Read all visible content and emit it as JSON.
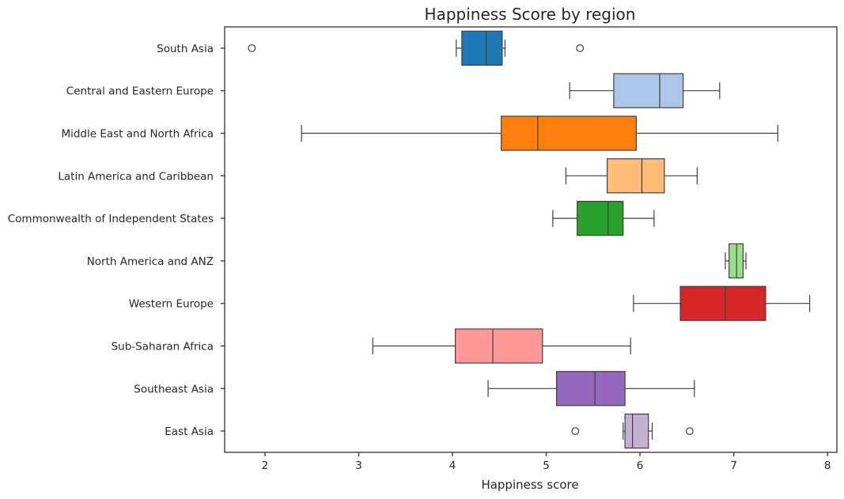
{
  "chart_data": {
    "type": "box",
    "orientation": "horizontal",
    "title": "Happiness Score by region",
    "xlabel": "Happiness score",
    "ylabel": "",
    "xlim": [
      1.57,
      8.1
    ],
    "xticks": [
      2,
      3,
      4,
      5,
      6,
      7,
      8
    ],
    "grid": false,
    "categories": [
      "South Asia",
      "Central and Eastern Europe",
      "Middle East and North Africa",
      "Latin America and Caribbean",
      "Commonwealth of Independent States",
      "North America and ANZ",
      "Western Europe",
      "Sub-Saharan Africa",
      "Southeast Asia",
      "East Asia"
    ],
    "boxes": [
      {
        "color": "#1f77b4",
        "whisker_low": 4.04,
        "q1": 4.1,
        "median": 4.36,
        "q3": 4.53,
        "whisker_high": 4.56,
        "outliers": [
          1.86,
          5.36
        ]
      },
      {
        "color": "#aec7e8",
        "whisker_low": 5.25,
        "q1": 5.72,
        "median": 6.21,
        "q3": 6.46,
        "whisker_high": 6.85,
        "outliers": []
      },
      {
        "color": "#ff7f0e",
        "whisker_low": 2.39,
        "q1": 4.52,
        "median": 4.91,
        "q3": 5.96,
        "whisker_high": 7.47,
        "outliers": []
      },
      {
        "color": "#ffbb78",
        "whisker_low": 5.21,
        "q1": 5.65,
        "median": 6.02,
        "q3": 6.26,
        "whisker_high": 6.61,
        "outliers": []
      },
      {
        "color": "#2ca02c",
        "whisker_low": 5.07,
        "q1": 5.33,
        "median": 5.66,
        "q3": 5.82,
        "whisker_high": 6.15,
        "outliers": []
      },
      {
        "color": "#98df8a",
        "whisker_low": 6.91,
        "q1": 6.95,
        "median": 7.03,
        "q3": 7.1,
        "whisker_high": 7.13,
        "outliers": []
      },
      {
        "color": "#d62728",
        "whisker_low": 5.93,
        "q1": 6.43,
        "median": 6.91,
        "q3": 7.34,
        "whisker_high": 7.81,
        "outliers": []
      },
      {
        "color": "#ff9896",
        "whisker_low": 3.15,
        "q1": 4.03,
        "median": 4.43,
        "q3": 4.96,
        "whisker_high": 5.9,
        "outliers": []
      },
      {
        "color": "#9467bd",
        "whisker_low": 4.38,
        "q1": 5.11,
        "median": 5.52,
        "q3": 5.84,
        "whisker_high": 6.58,
        "outliers": []
      },
      {
        "color": "#c5b0d5",
        "whisker_low": 5.82,
        "q1": 5.84,
        "median": 5.92,
        "q3": 6.09,
        "whisker_high": 6.13,
        "outliers": [
          5.31,
          6.53
        ]
      }
    ]
  }
}
